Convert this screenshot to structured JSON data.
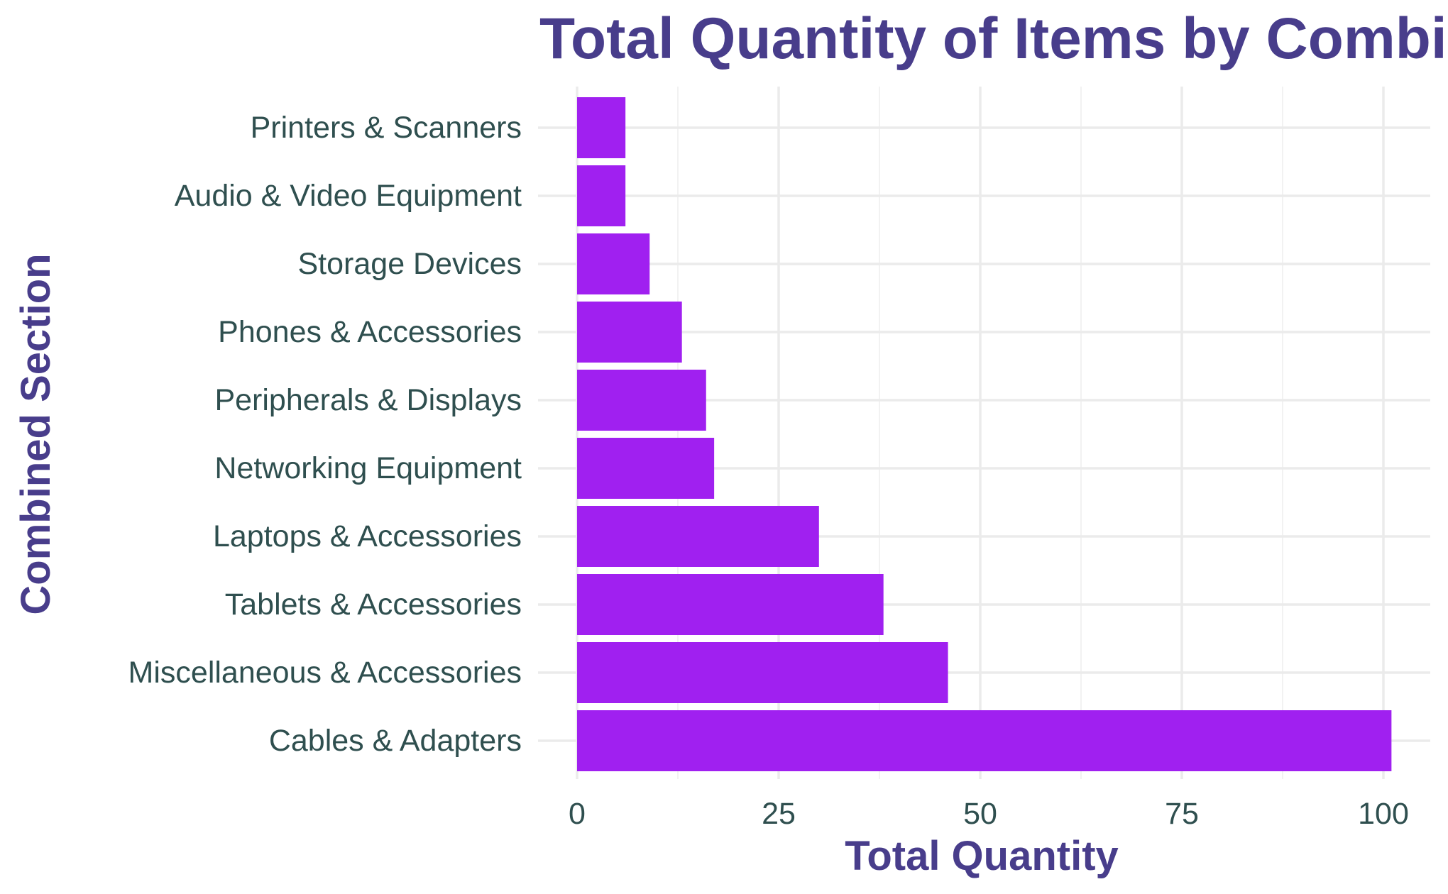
{
  "chart_data": {
    "type": "bar",
    "orientation": "horizontal",
    "title": "Total Quantity of Items by Combined Section",
    "xlabel": "Total Quantity",
    "ylabel": "Combined Section",
    "categories": [
      "Cables & Adapters",
      "Miscellaneous & Accessories",
      "Tablets & Accessories",
      "Laptops & Accessories",
      "Networking Equipment",
      "Peripherals & Displays",
      "Phones & Accessories",
      "Storage Devices",
      "Audio & Video Equipment",
      "Printers & Scanners"
    ],
    "values": [
      101,
      46,
      38,
      30,
      17,
      16,
      13,
      9,
      6,
      6
    ],
    "xlim": [
      0,
      104
    ],
    "xticks": [
      0,
      25,
      50,
      75,
      100
    ],
    "grid": true,
    "legend": "none",
    "colors": {
      "bar": "#a020f0",
      "title": "#483d8b",
      "tick_text": "#2f4f4f"
    }
  }
}
